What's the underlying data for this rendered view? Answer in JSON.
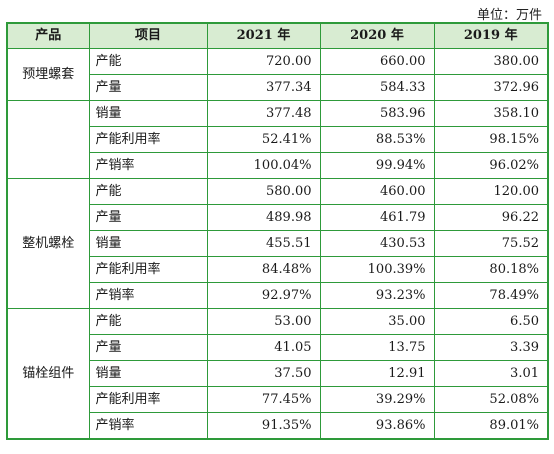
{
  "unit_label": "单位：万件",
  "headers": [
    "产品",
    "项目",
    "2021 年",
    "2020 年",
    "2019 年"
  ],
  "groups": [
    {
      "product": "预埋螺套",
      "rows": [
        {
          "item": "产能",
          "v2021": "720.00",
          "v2020": "660.00",
          "v2019": "380.00"
        },
        {
          "item": "产量",
          "v2021": "377.34",
          "v2020": "584.33",
          "v2019": "372.96"
        },
        {
          "item": "销量",
          "v2021": "377.48",
          "v2020": "583.96",
          "v2019": "358.10"
        },
        {
          "item": "产能利用率",
          "v2021": "52.41%",
          "v2020": "88.53%",
          "v2019": "98.15%"
        },
        {
          "item": "产销率",
          "v2021": "100.04%",
          "v2020": "99.94%",
          "v2019": "96.02%"
        }
      ]
    },
    {
      "product": "整机螺栓",
      "rows": [
        {
          "item": "产能",
          "v2021": "580.00",
          "v2020": "460.00",
          "v2019": "120.00"
        },
        {
          "item": "产量",
          "v2021": "489.98",
          "v2020": "461.79",
          "v2019": "96.22"
        },
        {
          "item": "销量",
          "v2021": "455.51",
          "v2020": "430.53",
          "v2019": "75.52"
        },
        {
          "item": "产能利用率",
          "v2021": "84.48%",
          "v2020": "100.39%",
          "v2019": "80.18%"
        },
        {
          "item": "产销率",
          "v2021": "92.97%",
          "v2020": "93.23%",
          "v2019": "78.49%"
        }
      ]
    },
    {
      "product": "锚栓组件",
      "rows": [
        {
          "item": "产能",
          "v2021": "53.00",
          "v2020": "35.00",
          "v2019": "6.50"
        },
        {
          "item": "产量",
          "v2021": "41.05",
          "v2020": "13.75",
          "v2019": "3.39"
        },
        {
          "item": "销量",
          "v2021": "37.50",
          "v2020": "12.91",
          "v2019": "3.01"
        },
        {
          "item": "产能利用率",
          "v2021": "77.45%",
          "v2020": "39.29%",
          "v2019": "52.08%"
        },
        {
          "item": "产销率",
          "v2021": "91.35%",
          "v2020": "93.86%",
          "v2019": "89.01%"
        }
      ]
    }
  ]
}
